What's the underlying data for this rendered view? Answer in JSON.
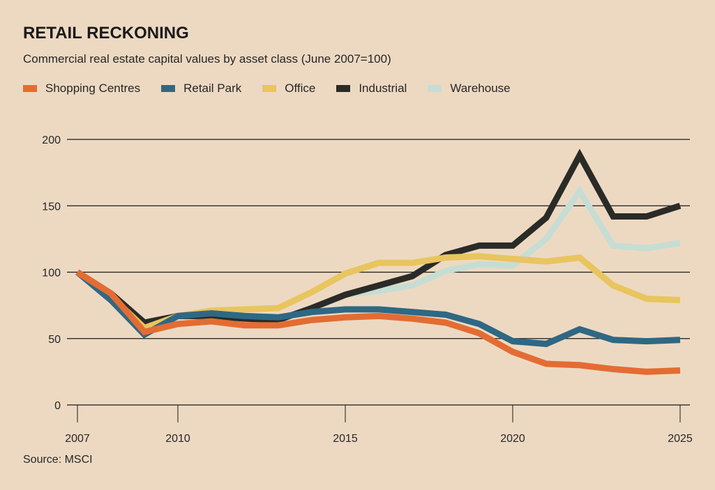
{
  "header": {
    "title": "RETAIL RECKONING",
    "subtitle": "Commercial real estate capital values by asset class (June 2007=100)"
  },
  "footer": {
    "source": "Source: MSCI"
  },
  "chart_data": {
    "type": "line",
    "title": "RETAIL RECKONING",
    "subtitle": "Commercial real estate capital values by asset class (June 2007=100)",
    "xlabel": "",
    "ylabel": "",
    "x": [
      2007,
      2008,
      2009,
      2010,
      2011,
      2012,
      2013,
      2014,
      2015,
      2016,
      2017,
      2018,
      2019,
      2020,
      2021,
      2022,
      2023,
      2024,
      2025
    ],
    "xlim": [
      2007,
      2025
    ],
    "ylim": [
      0,
      200
    ],
    "xticks": [
      2007,
      2010,
      2015,
      2020,
      2025
    ],
    "xtick_labels": [
      "2007",
      "2010",
      "2015",
      "2020",
      "2025"
    ],
    "yticks": [
      0,
      50,
      100,
      150,
      200
    ],
    "ytick_labels": [
      "0",
      "50",
      "100",
      "150",
      "200"
    ],
    "grid": "horizontal",
    "legend_position": "top-left",
    "series": [
      {
        "name": "Warehouse",
        "color": "#C6DDD4",
        "values": [
          100,
          83,
          62,
          67,
          69,
          67,
          65,
          72,
          83,
          86,
          90,
          101,
          106,
          105,
          125,
          161,
          120,
          118,
          122
        ]
      },
      {
        "name": "Industrial",
        "color": "#2A2B27",
        "values": [
          100,
          84,
          62,
          67,
          67,
          65,
          64,
          73,
          83,
          90,
          97,
          113,
          120,
          120,
          141,
          188,
          142,
          142,
          150
        ]
      },
      {
        "name": "Office",
        "color": "#E8C55E",
        "values": [
          100,
          82,
          58,
          67,
          71,
          72,
          73,
          85,
          99,
          107,
          107,
          111,
          112,
          110,
          108,
          111,
          90,
          80,
          79
        ]
      },
      {
        "name": "Retail Park",
        "color": "#2F6884",
        "values": [
          100,
          79,
          53,
          67,
          69,
          67,
          66,
          70,
          72,
          72,
          70,
          68,
          61,
          48,
          46,
          57,
          49,
          48,
          49
        ]
      },
      {
        "name": "Shopping Centres",
        "color": "#E36C33",
        "values": [
          100,
          84,
          55,
          61,
          63,
          60,
          60,
          64,
          66,
          67,
          65,
          62,
          54,
          40,
          31,
          30,
          27,
          25,
          26
        ]
      }
    ],
    "legend": [
      {
        "name": "Shopping Centres",
        "color": "#E36C33"
      },
      {
        "name": "Retail Park",
        "color": "#2F6884"
      },
      {
        "name": "Office",
        "color": "#E8C55E"
      },
      {
        "name": "Industrial",
        "color": "#2A2B27"
      },
      {
        "name": "Warehouse",
        "color": "#C6DDD4"
      }
    ]
  }
}
